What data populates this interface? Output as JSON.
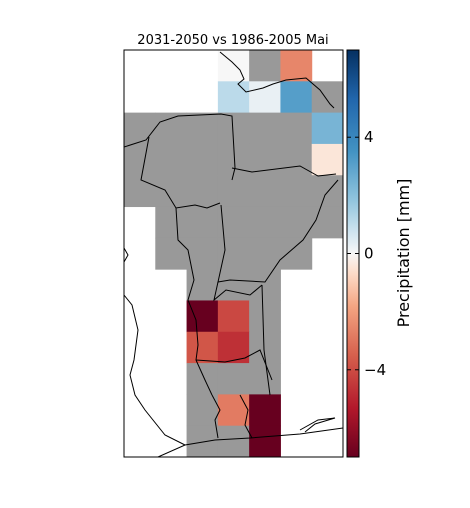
{
  "chart_data": {
    "type": "heatmap",
    "title": "2031-2050 vs 1986-2005 Mai",
    "colorbar": {
      "label": "Precipitation [mm]",
      "ticks": [
        4,
        0,
        -4
      ],
      "tick_labels": [
        "4",
        "0",
        "−4"
      ],
      "range": [
        -7,
        7
      ]
    },
    "colors": {
      "masked": "#999999",
      "land_border": "#000000",
      "background": "#ffffff"
    },
    "grid": {
      "cols": 7,
      "rows": 13
    },
    "cells": [
      {
        "col": 3,
        "row": 0,
        "value": 0.0
      },
      {
        "col": 4,
        "row": 0,
        "value": null
      },
      {
        "col": 5,
        "row": 0,
        "value": -3.0
      },
      {
        "col": 3,
        "row": 1,
        "value": 1.3
      },
      {
        "col": 4,
        "row": 1,
        "value": 0.3
      },
      {
        "col": 5,
        "row": 1,
        "value": 3.6
      },
      {
        "col": 6,
        "row": 1,
        "value": null
      },
      {
        "col": 0,
        "row": 2,
        "value": null
      },
      {
        "col": 1,
        "row": 2,
        "value": null
      },
      {
        "col": 2,
        "row": 2,
        "value": null
      },
      {
        "col": 3,
        "row": 2,
        "value": null
      },
      {
        "col": 4,
        "row": 2,
        "value": null
      },
      {
        "col": 5,
        "row": 2,
        "value": null
      },
      {
        "col": 6,
        "row": 2,
        "value": 2.8
      },
      {
        "col": 0,
        "row": 3,
        "value": null
      },
      {
        "col": 1,
        "row": 3,
        "value": null
      },
      {
        "col": 2,
        "row": 3,
        "value": null
      },
      {
        "col": 3,
        "row": 3,
        "value": null
      },
      {
        "col": 4,
        "row": 3,
        "value": null
      },
      {
        "col": 5,
        "row": 3,
        "value": null
      },
      {
        "col": 6,
        "row": 3,
        "value": -0.5
      },
      {
        "col": 0,
        "row": 4,
        "value": null
      },
      {
        "col": 1,
        "row": 4,
        "value": null
      },
      {
        "col": 2,
        "row": 4,
        "value": null
      },
      {
        "col": 3,
        "row": 4,
        "value": null
      },
      {
        "col": 4,
        "row": 4,
        "value": null
      },
      {
        "col": 5,
        "row": 4,
        "value": null
      },
      {
        "col": 6,
        "row": 4,
        "value": null
      },
      {
        "col": 1,
        "row": 5,
        "value": null
      },
      {
        "col": 2,
        "row": 5,
        "value": null
      },
      {
        "col": 3,
        "row": 5,
        "value": null
      },
      {
        "col": 4,
        "row": 5,
        "value": null
      },
      {
        "col": 5,
        "row": 5,
        "value": null
      },
      {
        "col": 6,
        "row": 5,
        "value": null
      },
      {
        "col": 1,
        "row": 6,
        "value": null
      },
      {
        "col": 2,
        "row": 6,
        "value": null
      },
      {
        "col": 3,
        "row": 6,
        "value": null
      },
      {
        "col": 4,
        "row": 6,
        "value": null
      },
      {
        "col": 5,
        "row": 6,
        "value": null
      },
      {
        "col": 2,
        "row": 7,
        "value": null
      },
      {
        "col": 3,
        "row": 7,
        "value": null
      },
      {
        "col": 4,
        "row": 7,
        "value": null
      },
      {
        "col": 2,
        "row": 8,
        "value": -7.0
      },
      {
        "col": 3,
        "row": 8,
        "value": -4.5
      },
      {
        "col": 4,
        "row": 8,
        "value": null
      },
      {
        "col": 2,
        "row": 9,
        "value": -4.2
      },
      {
        "col": 3,
        "row": 9,
        "value": -5.0
      },
      {
        "col": 4,
        "row": 9,
        "value": null
      },
      {
        "col": 2,
        "row": 10,
        "value": null
      },
      {
        "col": 3,
        "row": 10,
        "value": null
      },
      {
        "col": 4,
        "row": 10,
        "value": null
      },
      {
        "col": 2,
        "row": 11,
        "value": null
      },
      {
        "col": 3,
        "row": 11,
        "value": -3.3
      },
      {
        "col": 4,
        "row": 11,
        "value": -7.0
      },
      {
        "col": 2,
        "row": 12,
        "value": null
      },
      {
        "col": 3,
        "row": 12,
        "value": null
      },
      {
        "col": 4,
        "row": 12,
        "value": -7.0
      }
    ]
  }
}
